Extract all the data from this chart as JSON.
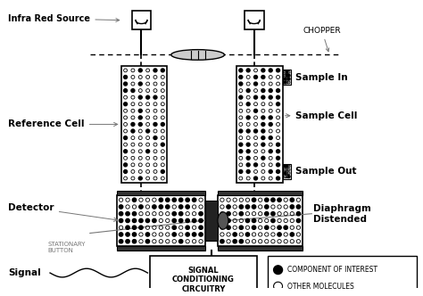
{
  "bg_color": "#ffffff",
  "line_color": "#000000",
  "gray_color": "#777777",
  "dark_gray": "#333333",
  "labels": {
    "infra_red": "Infra Red Source",
    "chopper": "CHOPPER",
    "sample_in": "Sample In",
    "reference_cell": "Reference Cell",
    "sample_cell": "Sample Cell",
    "sample_out": "Sample Out",
    "detector": "Detector",
    "stationary": "STATIONARY\nBUTTON",
    "signal": "Signal",
    "signal_box": "SIGNAL\nCONDITIONING\nCIRCUITRY",
    "diaphragm": "Diaphragm\nDistended",
    "comp_interest": "COMPONENT OF INTEREST",
    "other_mol": "OTHER MOLECULES"
  }
}
